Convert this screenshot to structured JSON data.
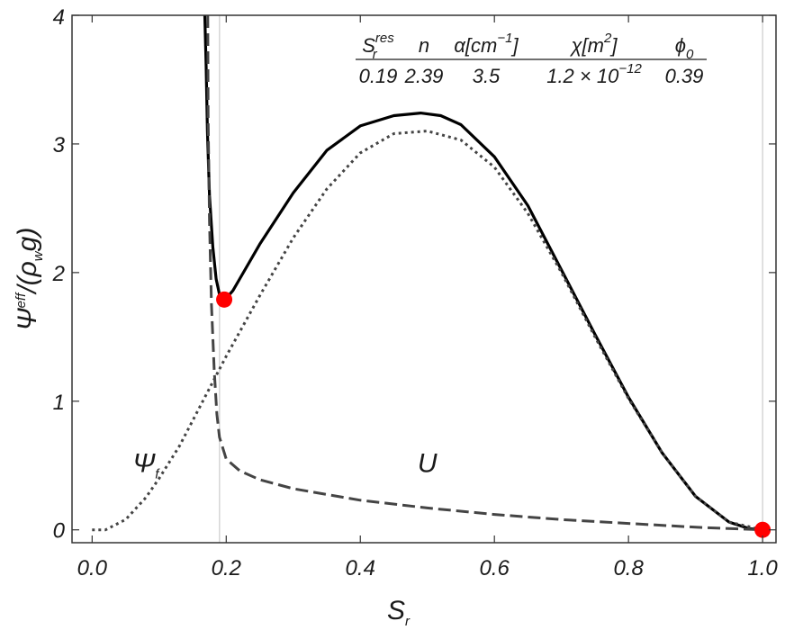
{
  "chart_data": {
    "type": "line",
    "xlabel": {
      "main": "S",
      "sub": "r"
    },
    "ylabel": {
      "main": "Ψ",
      "sup": "eff",
      "rest": "/(ρ",
      "sub": "w",
      "end": "g)"
    },
    "xlim": [
      -0.03,
      1.02
    ],
    "ylim": [
      -0.1,
      4
    ],
    "x_ticks": [
      "0.0",
      "0.2",
      "0.4",
      "0.6",
      "0.8",
      "1.0"
    ],
    "y_ticks": [
      "0",
      "1",
      "2",
      "3",
      "4"
    ],
    "vertical_reference_lines": [
      0.19,
      1.0
    ],
    "grid": false,
    "legend": "none",
    "series": [
      {
        "style": "solid",
        "color": "#000000",
        "x": [
          0.168,
          0.17,
          0.172,
          0.175,
          0.18,
          0.185,
          0.19,
          0.195,
          0.2,
          0.21,
          0.22,
          0.25,
          0.3,
          0.35,
          0.4,
          0.45,
          0.49,
          0.52,
          0.55,
          0.6,
          0.65,
          0.7,
          0.75,
          0.8,
          0.85,
          0.9,
          0.95,
          0.98,
          1.0
        ],
        "y": [
          4.0,
          3.6,
          3.1,
          2.6,
          2.2,
          1.95,
          1.83,
          1.79,
          1.8,
          1.86,
          1.95,
          2.22,
          2.62,
          2.95,
          3.14,
          3.22,
          3.24,
          3.22,
          3.15,
          2.9,
          2.52,
          2.02,
          1.52,
          1.03,
          0.6,
          0.26,
          0.06,
          0.01,
          0.0
        ]
      },
      {
        "style": "dotted",
        "color": "#444444",
        "x": [
          0.0,
          0.02,
          0.05,
          0.08,
          0.1,
          0.13,
          0.15,
          0.17,
          0.2,
          0.25,
          0.3,
          0.35,
          0.4,
          0.45,
          0.5,
          0.55,
          0.6,
          0.65,
          0.7,
          0.75,
          0.8,
          0.85,
          0.9,
          0.95,
          1.0
        ],
        "y": [
          0.0,
          0.0,
          0.08,
          0.25,
          0.4,
          0.65,
          0.85,
          1.05,
          1.35,
          1.82,
          2.27,
          2.65,
          2.93,
          3.08,
          3.1,
          3.03,
          2.82,
          2.46,
          2.0,
          1.5,
          1.02,
          0.6,
          0.26,
          0.06,
          0.0
        ]
      },
      {
        "style": "dashed",
        "color": "#444444",
        "x": [
          0.1725,
          0.173,
          0.175,
          0.178,
          0.182,
          0.186,
          0.19,
          0.2,
          0.22,
          0.25,
          0.3,
          0.4,
          0.5,
          0.6,
          0.7,
          0.8,
          0.9,
          1.0
        ],
        "y": [
          4.0,
          3.2,
          2.4,
          1.75,
          1.25,
          0.9,
          0.72,
          0.55,
          0.46,
          0.39,
          0.32,
          0.23,
          0.17,
          0.12,
          0.08,
          0.05,
          0.02,
          0.0
        ]
      }
    ],
    "points": [
      {
        "x": 0.197,
        "y": 1.79,
        "color": "#ff0000"
      },
      {
        "x": 1.0,
        "y": 0.0,
        "color": "#ff0000"
      }
    ],
    "curve_labels": [
      {
        "main": "Ψ",
        "sub": "f",
        "x": 0.08,
        "y": 0.45
      },
      {
        "main": "U",
        "x": 0.5,
        "y": 0.45
      }
    ],
    "parameters": {
      "headers": [
        {
          "main": "S",
          "sub": "r",
          "sup": "res"
        },
        {
          "main": "n"
        },
        {
          "main": "α[cm",
          "sup": "−1",
          "end": "]"
        },
        {
          "main": "χ[m",
          "sup": "2",
          "end": "]"
        },
        {
          "main": "ϕ",
          "sub": "0"
        }
      ],
      "values": [
        {
          "main": "0.19"
        },
        {
          "main": "2.39"
        },
        {
          "main": "3.5"
        },
        {
          "main": "1.2 × 10",
          "sup": "−12"
        },
        {
          "main": "0.39"
        }
      ]
    }
  }
}
